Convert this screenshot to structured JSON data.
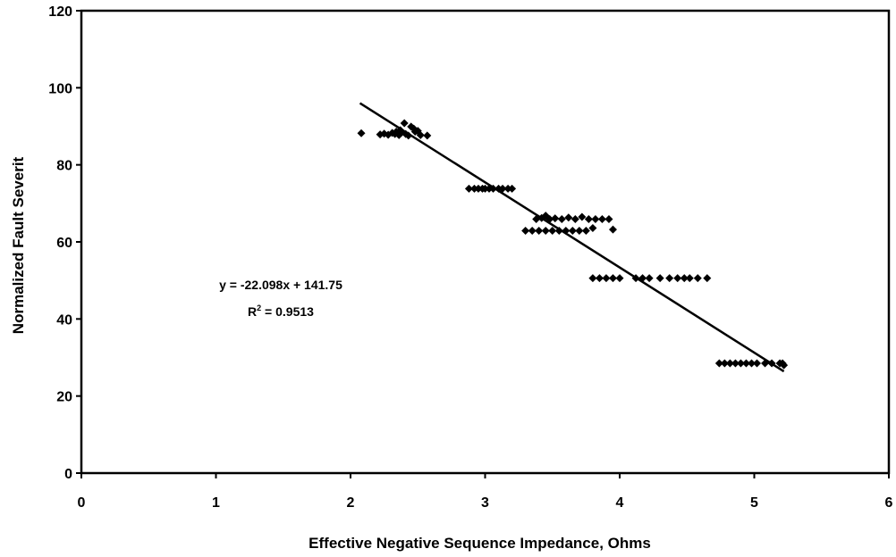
{
  "chart_data": {
    "type": "scatter",
    "title": "",
    "xlabel": "Effective Negative Sequence Impedance, Ohms",
    "ylabel": "Normalized Fault Severit",
    "xlim": [
      0,
      6
    ],
    "ylim": [
      0,
      120
    ],
    "xticks": [
      0,
      1,
      2,
      3,
      4,
      5,
      6
    ],
    "yticks": [
      0,
      20,
      40,
      60,
      80,
      100,
      120
    ],
    "grid": false,
    "legend": "none",
    "marker": "diamond",
    "marker_color": "#000000",
    "series": [
      {
        "points": [
          [
            2.08,
            88.2
          ],
          [
            2.22,
            87.9
          ],
          [
            2.25,
            88.1
          ],
          [
            2.28,
            87.8
          ],
          [
            2.31,
            88.3
          ],
          [
            2.33,
            88.0
          ],
          [
            2.34,
            88.6
          ],
          [
            2.36,
            87.7
          ],
          [
            2.37,
            89.0
          ],
          [
            2.38,
            88.4
          ],
          [
            2.4,
            90.8
          ],
          [
            2.41,
            88.0
          ],
          [
            2.43,
            87.6
          ],
          [
            2.45,
            89.9
          ],
          [
            2.47,
            89.4
          ],
          [
            2.48,
            88.6
          ],
          [
            2.5,
            88.8
          ],
          [
            2.52,
            87.7
          ],
          [
            2.57,
            87.6
          ],
          [
            2.88,
            73.8
          ],
          [
            2.92,
            73.8
          ],
          [
            2.95,
            73.8
          ],
          [
            2.98,
            73.8
          ],
          [
            3.0,
            73.8
          ],
          [
            3.03,
            73.8
          ],
          [
            3.06,
            73.8
          ],
          [
            3.1,
            73.8
          ],
          [
            3.13,
            73.8
          ],
          [
            3.17,
            73.8
          ],
          [
            3.2,
            73.8
          ],
          [
            3.3,
            62.9
          ],
          [
            3.35,
            62.9
          ],
          [
            3.4,
            62.9
          ],
          [
            3.45,
            62.9
          ],
          [
            3.5,
            62.9
          ],
          [
            3.55,
            62.9
          ],
          [
            3.6,
            62.9
          ],
          [
            3.65,
            62.9
          ],
          [
            3.7,
            62.9
          ],
          [
            3.75,
            62.9
          ],
          [
            3.8,
            63.6
          ],
          [
            3.38,
            65.9
          ],
          [
            3.42,
            66.2
          ],
          [
            3.45,
            66.8
          ],
          [
            3.48,
            65.9
          ],
          [
            3.52,
            66.1
          ],
          [
            3.57,
            65.9
          ],
          [
            3.62,
            66.3
          ],
          [
            3.67,
            65.9
          ],
          [
            3.72,
            66.5
          ],
          [
            3.77,
            65.9
          ],
          [
            3.82,
            65.9
          ],
          [
            3.87,
            65.9
          ],
          [
            3.92,
            65.9
          ],
          [
            3.95,
            63.2
          ],
          [
            3.8,
            50.6
          ],
          [
            3.85,
            50.6
          ],
          [
            3.9,
            50.6
          ],
          [
            3.95,
            50.6
          ],
          [
            4.0,
            50.6
          ],
          [
            4.12,
            50.6
          ],
          [
            4.17,
            50.6
          ],
          [
            4.22,
            50.6
          ],
          [
            4.3,
            50.6
          ],
          [
            4.37,
            50.6
          ],
          [
            4.43,
            50.6
          ],
          [
            4.48,
            50.6
          ],
          [
            4.52,
            50.6
          ],
          [
            4.58,
            50.6
          ],
          [
            4.65,
            50.6
          ],
          [
            4.74,
            28.5
          ],
          [
            4.78,
            28.5
          ],
          [
            4.82,
            28.5
          ],
          [
            4.86,
            28.5
          ],
          [
            4.9,
            28.5
          ],
          [
            4.94,
            28.5
          ],
          [
            4.98,
            28.5
          ],
          [
            5.02,
            28.5
          ],
          [
            5.08,
            28.5
          ],
          [
            5.13,
            28.5
          ],
          [
            5.19,
            28.5
          ],
          [
            5.21,
            28.5
          ],
          [
            5.22,
            28.0
          ]
        ]
      }
    ],
    "trendline": {
      "slope": -22.098,
      "intercept": 141.75,
      "x_range": [
        2.07,
        5.22
      ],
      "equation_text": "y = -22.098x + 141.75",
      "r2_prefix": "R",
      "r2_sup": "2",
      "r2_value": " = 0.9513"
    }
  }
}
